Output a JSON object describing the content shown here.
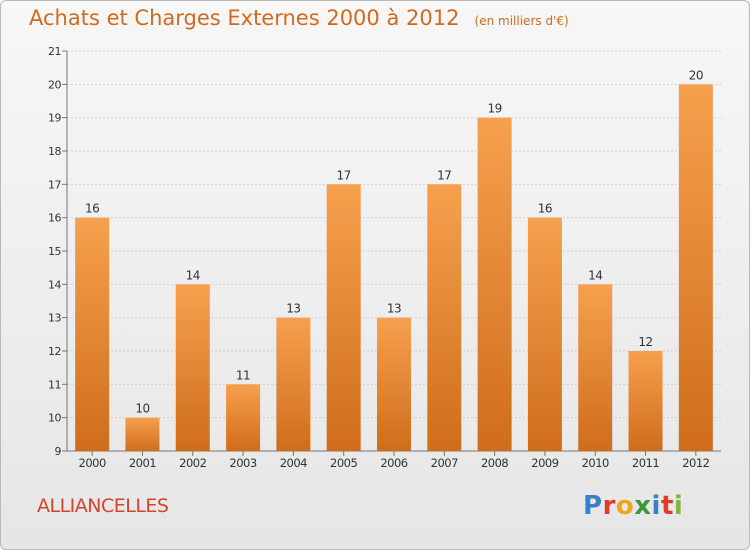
{
  "header": {
    "title": "Achats et Charges Externes 2000 à 2012",
    "subtitle": "(en milliers d'€)"
  },
  "commune": "ALLIANCELLES",
  "logo": {
    "text": "Proxiti",
    "letters": [
      {
        "ch": "P",
        "color": "#3a7fc9"
      },
      {
        "ch": "r",
        "color": "#e23a2a"
      },
      {
        "ch": "o",
        "color": "#f2a51a"
      },
      {
        "ch": "x",
        "color": "#3a9a3a"
      },
      {
        "ch": "i",
        "color": "#3a7fc9"
      },
      {
        "ch": "t",
        "color": "#e23a2a"
      },
      {
        "ch": "i",
        "color": "#7cb83a"
      }
    ]
  },
  "colors": {
    "title": "#d06a1e",
    "bar_top": "#f6a04e",
    "bar_bottom": "#cf6d1c",
    "commune": "#d2452a"
  },
  "chart_data": {
    "type": "bar",
    "categories": [
      "2000",
      "2001",
      "2002",
      "2003",
      "2004",
      "2005",
      "2006",
      "2007",
      "2008",
      "2009",
      "2010",
      "2011",
      "2012"
    ],
    "values": [
      16,
      10,
      14,
      11,
      13,
      17,
      13,
      17,
      19,
      16,
      14,
      12,
      20
    ],
    "ylim": [
      9,
      21
    ],
    "yticks": [
      9,
      10,
      11,
      12,
      13,
      14,
      15,
      16,
      17,
      18,
      19,
      20,
      21
    ],
    "grid": true
  }
}
